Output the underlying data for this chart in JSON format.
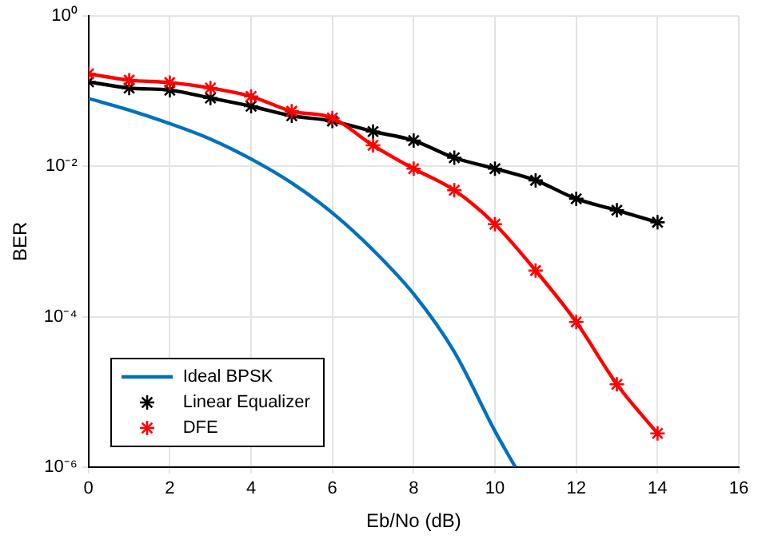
{
  "chart_data": {
    "type": "line",
    "xlabel": "Eb/No (dB)",
    "ylabel": "BER",
    "log": "y",
    "grid": true,
    "legend": "bottom left",
    "xlim": [
      0,
      16
    ],
    "xticks": [
      0,
      2,
      4,
      6,
      8,
      10,
      12,
      14,
      16
    ],
    "ylim": [
      1e-06,
      1
    ],
    "yticks": [
      {
        "value": 1,
        "label": "10⁰"
      },
      {
        "value": 0.01,
        "label": "10⁻²"
      },
      {
        "value": 0.0001,
        "label": "10⁻⁴"
      },
      {
        "value": 1e-06,
        "label": "10⁻⁶"
      }
    ],
    "series": [
      {
        "name": "Ideal BPSK",
        "color": "#0072bd",
        "marker": "none",
        "x": [
          0,
          1,
          2,
          3,
          4,
          5,
          6,
          7,
          8,
          9,
          10,
          10.5
        ],
        "values": [
          0.08,
          0.056,
          0.037,
          0.023,
          0.0125,
          0.006,
          0.0024,
          0.00077,
          0.0002,
          3.4e-05,
          3e-06,
          1e-06
        ]
      },
      {
        "name": "Linear Equalizer",
        "color": "#000000",
        "marker": "cross",
        "x": [
          0,
          1,
          2,
          3,
          4,
          5,
          6,
          7,
          8,
          9,
          10,
          11,
          12,
          13,
          14
        ],
        "values": [
          0.133,
          0.11,
          0.103,
          0.081,
          0.063,
          0.047,
          0.04,
          0.029,
          0.022,
          0.013,
          0.0093,
          0.0065,
          0.0037,
          0.0026,
          0.0018
        ]
      },
      {
        "name": "DFE",
        "color": "#ff0000",
        "marker": "cross",
        "x": [
          0,
          1,
          2,
          3,
          4,
          5,
          6,
          7,
          8,
          9,
          10,
          11,
          12,
          13,
          14
        ],
        "values": [
          0.17,
          0.14,
          0.13,
          0.11,
          0.085,
          0.054,
          0.044,
          0.019,
          0.0093,
          0.0048,
          0.0017,
          0.00041,
          8.5e-05,
          1.26e-05,
          2.8e-06
        ]
      }
    ]
  }
}
